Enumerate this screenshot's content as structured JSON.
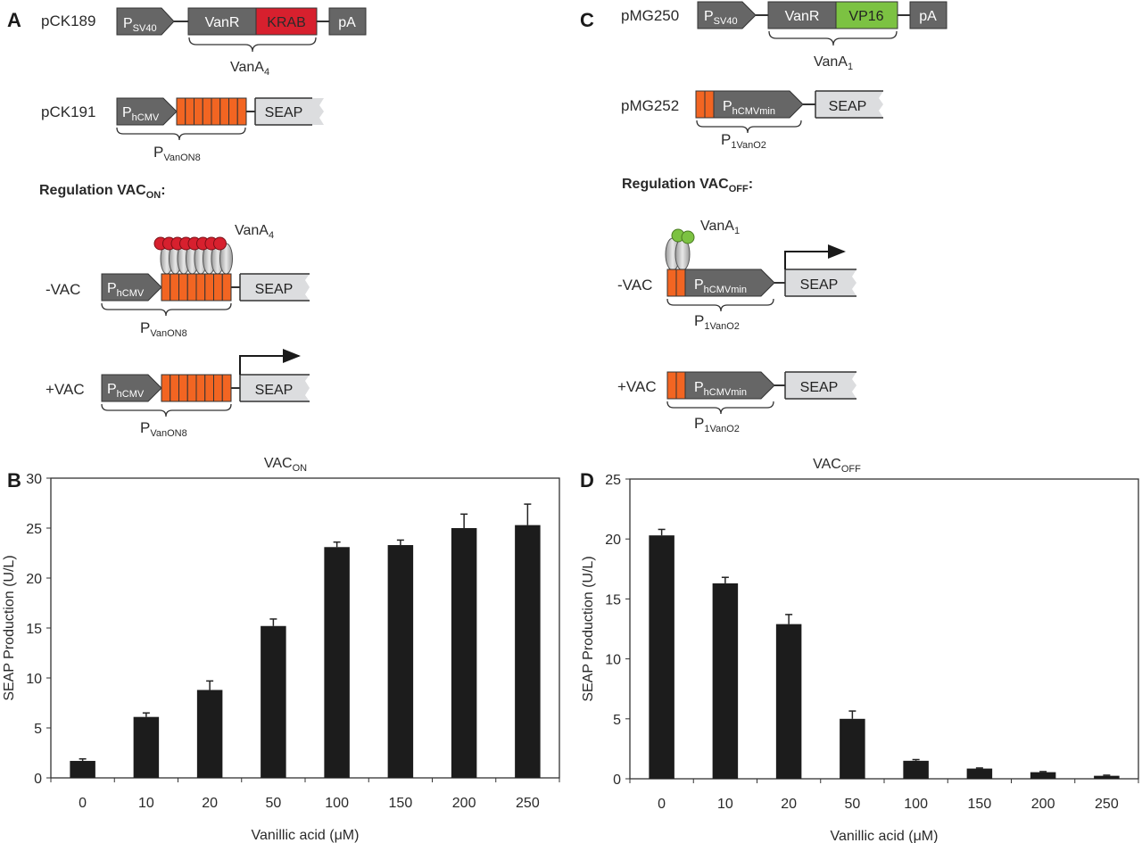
{
  "panels": {
    "A": {
      "letter": "A",
      "constructs": [
        {
          "name": "pCK189",
          "parts": [
            "P",
            "SV40",
            "VanR",
            "KRAB",
            "pA"
          ],
          "bracket_label": "VanA",
          "bracket_sub": "4"
        },
        {
          "name": "pCK191",
          "parts": [
            "P",
            "hCMV",
            "SEAP"
          ],
          "bracket_label": "P",
          "bracket_sub": "VanON8"
        }
      ],
      "regulation_title": "Regulation VAC",
      "regulation_sub": "ON",
      "regulation_colon": ":",
      "states": [
        {
          "label": "-VAC",
          "bound": "VanA",
          "bound_sub": "4",
          "expressed": false
        },
        {
          "label": "+VAC",
          "expressed": true
        }
      ]
    },
    "C": {
      "letter": "C",
      "constructs": [
        {
          "name": "pMG250",
          "parts": [
            "P",
            "SV40",
            "VanR",
            "VP16",
            "pA"
          ],
          "bracket_label": "VanA",
          "bracket_sub": "1"
        },
        {
          "name": "pMG252",
          "parts": [
            "P",
            "hCMVmin",
            "SEAP"
          ],
          "bracket_label": "P",
          "bracket_sub": "1VanO2"
        }
      ],
      "regulation_title": "Regulation VAC",
      "regulation_sub": "OFF",
      "regulation_colon": ":",
      "states": [
        {
          "label": "-VAC",
          "bound": "VanA",
          "bound_sub": "1",
          "expressed": true
        },
        {
          "label": "+VAC",
          "expressed": false
        }
      ]
    }
  },
  "colors": {
    "dark_gray": "#666666",
    "krab_red": "#d7202e",
    "vp16_green": "#7cc242",
    "operator_orange": "#f26522",
    "seap_light": "#dcdddf",
    "bar": "#1c1c1c"
  },
  "chart_data": [
    {
      "panel": "B",
      "type": "bar",
      "title": "VAC",
      "title_sub": "ON",
      "xlabel": "Vanillic acid (μM)",
      "ylabel": "SEAP Production (U/L)",
      "categories": [
        "0",
        "10",
        "20",
        "50",
        "100",
        "150",
        "200",
        "250"
      ],
      "values": [
        1.7,
        6.1,
        8.8,
        15.2,
        23.1,
        23.3,
        25.0,
        25.3
      ],
      "errors": [
        0.2,
        0.4,
        0.9,
        0.7,
        0.5,
        0.5,
        1.4,
        2.1
      ],
      "ylim": [
        0,
        30
      ],
      "yticks": [
        0,
        5,
        10,
        15,
        20,
        25,
        30
      ],
      "grid": false
    },
    {
      "panel": "D",
      "type": "bar",
      "title": "VAC",
      "title_sub": "OFF",
      "xlabel": "Vanillic acid (μM)",
      "ylabel": "SEAP Production (U/L)",
      "categories": [
        "0",
        "10",
        "20",
        "50",
        "100",
        "150",
        "200",
        "250"
      ],
      "values": [
        20.3,
        16.3,
        12.9,
        5.0,
        1.5,
        0.85,
        0.55,
        0.25
      ],
      "errors": [
        0.5,
        0.5,
        0.8,
        0.65,
        0.1,
        0.05,
        0.05,
        0.05
      ],
      "ylim": [
        0,
        25
      ],
      "yticks": [
        0,
        5,
        10,
        15,
        20,
        25
      ],
      "grid": false
    }
  ]
}
